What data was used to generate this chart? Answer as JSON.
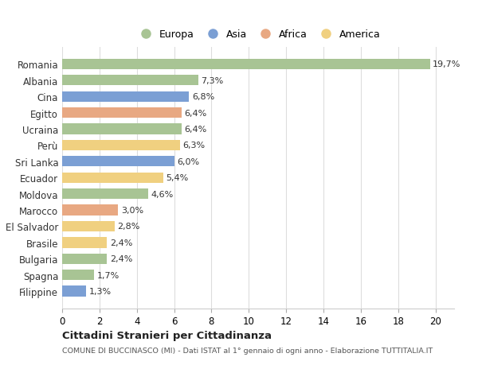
{
  "categories": [
    "Romania",
    "Albania",
    "Cina",
    "Egitto",
    "Ucraina",
    "Perù",
    "Sri Lanka",
    "Ecuador",
    "Moldova",
    "Marocco",
    "El Salvador",
    "Brasile",
    "Bulgaria",
    "Spagna",
    "Filippine"
  ],
  "values": [
    19.7,
    7.3,
    6.8,
    6.4,
    6.4,
    6.3,
    6.0,
    5.4,
    4.6,
    3.0,
    2.8,
    2.4,
    2.4,
    1.7,
    1.3
  ],
  "labels": [
    "19,7%",
    "7,3%",
    "6,8%",
    "6,4%",
    "6,4%",
    "6,3%",
    "6,0%",
    "5,4%",
    "4,6%",
    "3,0%",
    "2,8%",
    "2,4%",
    "2,4%",
    "1,7%",
    "1,3%"
  ],
  "continents": [
    "Europa",
    "Europa",
    "Asia",
    "Africa",
    "Europa",
    "America",
    "Asia",
    "America",
    "Europa",
    "Africa",
    "America",
    "America",
    "Europa",
    "Europa",
    "Asia"
  ],
  "continent_colors": {
    "Europa": "#a8c494",
    "Asia": "#7b9fd4",
    "Africa": "#e8a882",
    "America": "#f0d080"
  },
  "legend_order": [
    "Europa",
    "Asia",
    "Africa",
    "America"
  ],
  "title": "Cittadini Stranieri per Cittadinanza",
  "subtitle": "COMUNE DI BUCCINASCO (MI) - Dati ISTAT al 1° gennaio di ogni anno - Elaborazione TUTTITALIA.IT",
  "xlim": [
    0,
    21
  ],
  "xticks": [
    0,
    2,
    4,
    6,
    8,
    10,
    12,
    14,
    16,
    18,
    20
  ],
  "background_color": "#ffffff",
  "grid_color": "#dddddd"
}
